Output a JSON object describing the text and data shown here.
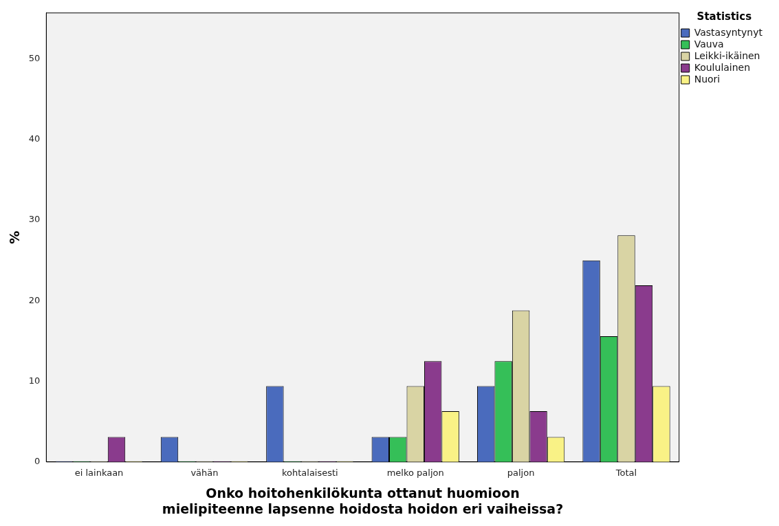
{
  "chart_data": {
    "type": "bar",
    "xlabel": "Onko hoitohenkilökunta ottanut huomioon\nmielipiteenne lapsenne hoidosta hoidon eri vaiheissa?",
    "ylabel": "%",
    "legend_title": "Statistics",
    "categories": [
      "ei lainkaan",
      "vähän",
      "kohtalaisesti",
      "melko paljon",
      "paljon",
      "Total"
    ],
    "series": [
      {
        "name": "Vastasyntynyt",
        "color": "#4a6bbd",
        "values": [
          0,
          3.1,
          9.4,
          3.1,
          9.4,
          25.0
        ]
      },
      {
        "name": "Vauva",
        "color": "#35bf58",
        "values": [
          0,
          0,
          0,
          3.1,
          12.5,
          15.6
        ]
      },
      {
        "name": "Leikki-ikäinen",
        "color": "#d9d4a4",
        "values": [
          0,
          0,
          0,
          9.4,
          18.8,
          28.1
        ]
      },
      {
        "name": "Koululainen",
        "color": "#8a3b8d",
        "values": [
          3.1,
          0,
          0,
          12.5,
          6.3,
          21.9
        ]
      },
      {
        "name": "Nuori",
        "color": "#f9f286",
        "values": [
          0,
          0,
          0,
          6.3,
          3.1,
          9.4
        ]
      }
    ],
    "ylim": [
      0,
      55.7
    ],
    "yticks": [
      0,
      10,
      20,
      30,
      40,
      50
    ],
    "grid": false,
    "legend": "top right"
  }
}
